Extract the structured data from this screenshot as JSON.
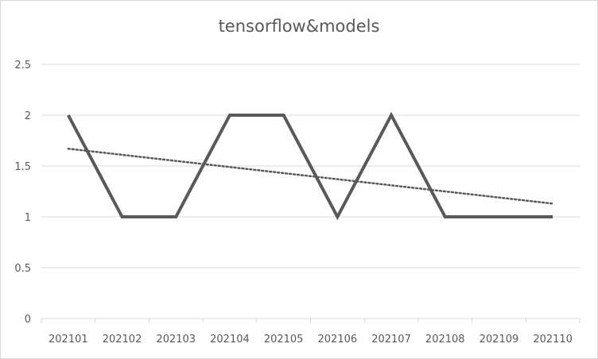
{
  "chart_data": {
    "type": "line",
    "title": "tensorflow&models",
    "categories": [
      "202101",
      "202102",
      "202103",
      "202104",
      "202105",
      "202106",
      "202107",
      "202108",
      "202109",
      "202110"
    ],
    "series": [
      {
        "values": [
          2,
          1,
          1,
          2,
          2,
          1,
          2,
          1,
          1,
          1
        ]
      }
    ],
    "trendline": {
      "type": "linear",
      "style": "dotted",
      "start": 1.67,
      "end": 1.13
    },
    "ylim": [
      0,
      2.5
    ],
    "yticks": [
      "0",
      "0.5",
      "1",
      "1.5",
      "2",
      "2.5"
    ],
    "grid": true,
    "legend": "none",
    "colors": {
      "series": "#595959",
      "trendline": "#595959",
      "grid": "#d9d9d9",
      "text": "#595959"
    }
  }
}
